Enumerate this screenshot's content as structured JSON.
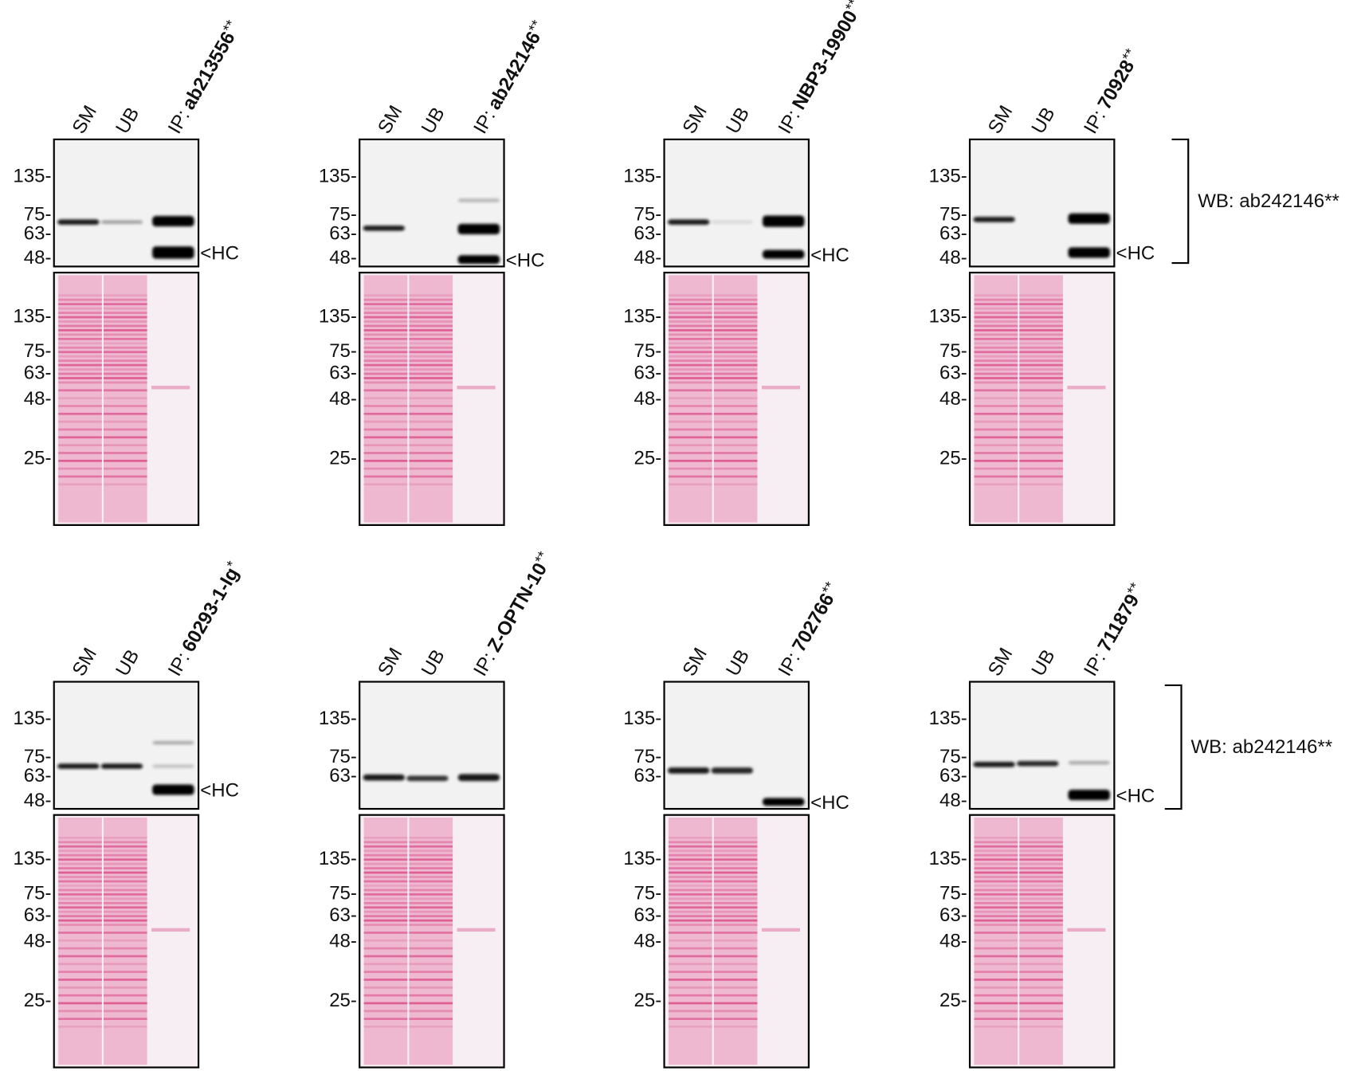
{
  "panels": [
    {
      "lanes": [
        "SM",
        "UB"
      ],
      "ip": {
        "prefix": "IP:",
        "antibody": "ab213556",
        "suffix": "**"
      },
      "wb_markers": [
        "135-",
        "75-",
        "63-",
        "48-"
      ],
      "hc": "<HC",
      "ponceau_markers": [
        "135-",
        "75-",
        "63-",
        "48-",
        "25-"
      ]
    },
    {
      "lanes": [
        "SM",
        "UB"
      ],
      "ip": {
        "prefix": "IP:",
        "antibody": "ab242146",
        "suffix": "**"
      },
      "wb_markers": [
        "135-",
        "75-",
        "63-",
        "48-"
      ],
      "hc": "<HC",
      "ponceau_markers": [
        "135-",
        "75-",
        "63-",
        "48-",
        "25-"
      ]
    },
    {
      "lanes": [
        "SM",
        "UB"
      ],
      "ip": {
        "prefix": "IP:",
        "antibody": "NBP3-19900",
        "suffix": "**"
      },
      "wb_markers": [
        "135-",
        "75-",
        "63-",
        "48-"
      ],
      "hc": "<HC",
      "ponceau_markers": [
        "135-",
        "75-",
        "63-",
        "48-",
        "25-"
      ]
    },
    {
      "lanes": [
        "SM",
        "UB"
      ],
      "ip": {
        "prefix": "IP:",
        "antibody": "70928",
        "suffix": "**"
      },
      "wb_markers": [
        "135-",
        "75-",
        "63-",
        "48-"
      ],
      "hc": "<HC",
      "ponceau_markers": [
        "135-",
        "75-",
        "63-",
        "48-",
        "25-"
      ]
    },
    {
      "lanes": [
        "SM",
        "UB"
      ],
      "ip": {
        "prefix": "IP:",
        "antibody": "60293-1-Ig",
        "suffix": "*"
      },
      "wb_markers": [
        "135-",
        "75-",
        "63-",
        "48-"
      ],
      "hc": "<HC",
      "ponceau_markers": [
        "135-",
        "75-",
        "63-",
        "48-",
        "25-"
      ]
    },
    {
      "lanes": [
        "SM",
        "UB"
      ],
      "ip": {
        "prefix": "IP:",
        "antibody": "Z-OPTN-10",
        "suffix": "**"
      },
      "wb_markers": [
        "135-",
        "75-",
        "63-"
      ],
      "ponceau_markers": [
        "135-",
        "75-",
        "63-",
        "48-",
        "25-"
      ]
    },
    {
      "lanes": [
        "SM",
        "UB"
      ],
      "ip": {
        "prefix": "IP:",
        "antibody": "702766",
        "suffix": "**"
      },
      "wb_markers": [
        "135-",
        "75-",
        "63-"
      ],
      "hc": "<HC",
      "ponceau_markers": [
        "135-",
        "75-",
        "63-",
        "48-",
        "25-"
      ]
    },
    {
      "lanes": [
        "SM",
        "UB"
      ],
      "ip": {
        "prefix": "IP:",
        "antibody": "711879",
        "suffix": "**"
      },
      "wb_markers": [
        "135-",
        "75-",
        "63-",
        "48-"
      ],
      "hc": "<HC",
      "ponceau_markers": [
        "135-",
        "75-",
        "63-",
        "48-",
        "25-"
      ]
    }
  ],
  "wb_labels": [
    "WB: ab242146**",
    "WB: ab242146**"
  ]
}
